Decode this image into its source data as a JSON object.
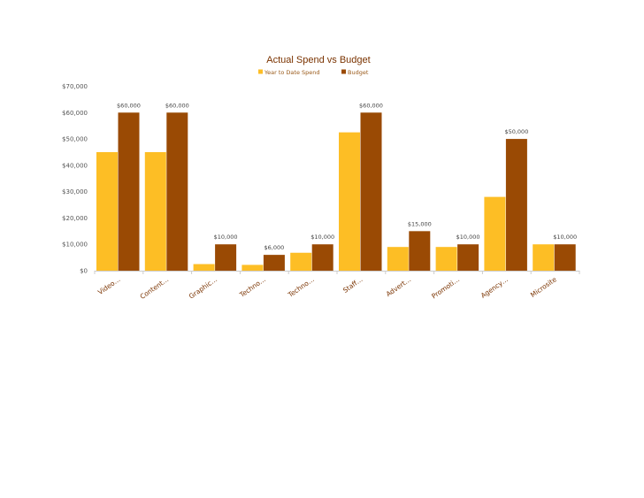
{
  "chart_data": {
    "type": "bar",
    "title": "Actual Spend vs Budget",
    "categories": [
      "Video…",
      "Content…",
      "Graphic…",
      "Techno…",
      "Techno…",
      "Staff…",
      "Advert…",
      "Promoti…",
      "Agency…",
      "Microsite"
    ],
    "series": [
      {
        "name": "Year to Date Spend",
        "color": "#FDBE25",
        "values": [
          45000,
          45000,
          2500,
          2200,
          6800,
          52500,
          9000,
          9000,
          28000,
          10000
        ]
      },
      {
        "name": "Budget",
        "color": "#9A4A04",
        "values": [
          60000,
          60000,
          10000,
          6000,
          10000,
          60000,
          15000,
          10000,
          50000,
          10000
        ]
      }
    ],
    "data_labels": [
      "$60,000",
      "$60,000",
      "$10,000",
      "$6,000",
      "$10,000",
      "$60,000",
      "$15,000",
      "$10,000",
      "$50,000",
      "$10,000"
    ],
    "yticks": [
      "$0",
      "$10,000",
      "$20,000",
      "$30,000",
      "$40,000",
      "$50,000",
      "$60,000",
      "$70,000"
    ],
    "ylim": [
      0,
      70000
    ],
    "legend_position": "top",
    "grid": false
  }
}
